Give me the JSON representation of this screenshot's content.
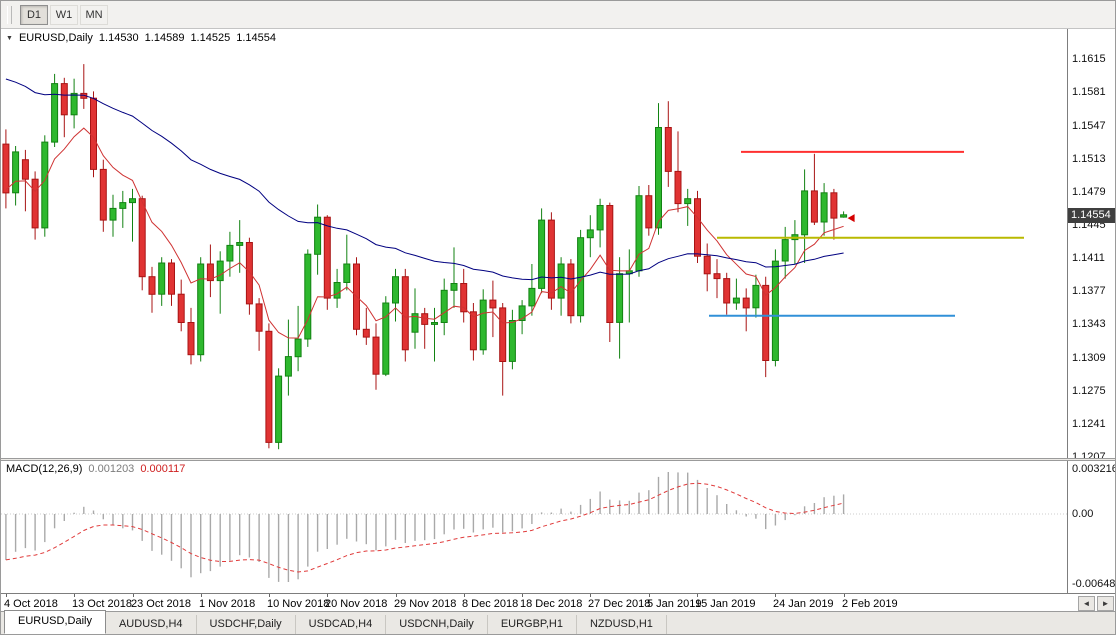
{
  "toolbar": {
    "buttons": [
      {
        "label": "D1",
        "active": true
      },
      {
        "label": "W1",
        "active": false
      },
      {
        "label": "MN",
        "active": false
      }
    ]
  },
  "chart_header": {
    "collapse_icon": "▼",
    "symbol_period": "EURUSD,Daily",
    "open": "1.14530",
    "high": "1.14589",
    "low": "1.14525",
    "close": "1.14554"
  },
  "chart_data": {
    "type": "candlestick",
    "symbol": "EURUSD",
    "period": "Daily",
    "price_max": 1.1646,
    "price_min": 1.1206,
    "visible_fraction": 0.795,
    "price_axis_ticks": [
      "1.1615",
      "1.1581",
      "1.1547",
      "1.1513",
      "1.1479",
      "1.1445",
      "1.1411",
      "1.1377",
      "1.1343",
      "1.1309",
      "1.1275",
      "1.1241",
      "1.1207"
    ],
    "last_price": "1.14554",
    "bull_color": "#2eb82e",
    "bull_border": "#128212",
    "bear_color": "#e03333",
    "bear_border": "#a81414",
    "ma_overlays": [
      {
        "name": "fast-ma",
        "period": 8,
        "seed": 1.1482,
        "color": "#cf3333"
      },
      {
        "name": "slow-ma",
        "period": 45,
        "seed": 1.16,
        "color": "#000080"
      }
    ],
    "hlines": [
      {
        "name": "resistance-hline",
        "price": 1.152,
        "x1": 0.694,
        "x2": 0.903,
        "color": "#ff3030",
        "width": 2
      },
      {
        "name": "pivot-hline",
        "price": 1.1432,
        "x1": 0.672,
        "x2": 0.96,
        "color": "#b9b900",
        "width": 2
      },
      {
        "name": "support-hline",
        "price": 1.1352,
        "x1": 0.664,
        "x2": 0.895,
        "color": "#3090d8",
        "width": 2
      }
    ],
    "marker": {
      "price": 1.1452,
      "color": "#d40000"
    },
    "candles": [
      [
        1.1528,
        1.1543,
        1.1462,
        1.1478
      ],
      [
        1.1478,
        1.1526,
        1.1465,
        1.152
      ],
      [
        1.1512,
        1.1522,
        1.1459,
        1.1492
      ],
      [
        1.1492,
        1.15,
        1.143,
        1.1442
      ],
      [
        1.1442,
        1.1537,
        1.1433,
        1.153
      ],
      [
        1.153,
        1.16,
        1.1525,
        1.159
      ],
      [
        1.159,
        1.1596,
        1.1535,
        1.1558
      ],
      [
        1.1558,
        1.1595,
        1.1544,
        1.158
      ],
      [
        1.158,
        1.161,
        1.1564,
        1.1575
      ],
      [
        1.1575,
        1.1582,
        1.1494,
        1.1502
      ],
      [
        1.1502,
        1.1512,
        1.1438,
        1.145
      ],
      [
        1.145,
        1.1476,
        1.1433,
        1.1462
      ],
      [
        1.1462,
        1.148,
        1.1442,
        1.1468
      ],
      [
        1.1468,
        1.1482,
        1.1428,
        1.1472
      ],
      [
        1.1472,
        1.1475,
        1.1378,
        1.1392
      ],
      [
        1.1392,
        1.1402,
        1.1355,
        1.1374
      ],
      [
        1.1374,
        1.1412,
        1.1362,
        1.1406
      ],
      [
        1.1406,
        1.141,
        1.1362,
        1.1374
      ],
      [
        1.1374,
        1.1389,
        1.1336,
        1.1345
      ],
      [
        1.1345,
        1.136,
        1.1302,
        1.1312
      ],
      [
        1.1312,
        1.1412,
        1.1305,
        1.1405
      ],
      [
        1.1405,
        1.1425,
        1.1371,
        1.1388
      ],
      [
        1.1388,
        1.1418,
        1.1354,
        1.1408
      ],
      [
        1.1408,
        1.1438,
        1.1392,
        1.1424
      ],
      [
        1.1424,
        1.145,
        1.1396,
        1.1427
      ],
      [
        1.1427,
        1.1432,
        1.1353,
        1.1364
      ],
      [
        1.1364,
        1.137,
        1.1316,
        1.1336
      ],
      [
        1.1336,
        1.1344,
        1.1216,
        1.1222
      ],
      [
        1.1222,
        1.1298,
        1.1215,
        1.129
      ],
      [
        1.129,
        1.1348,
        1.127,
        1.131
      ],
      [
        1.131,
        1.1362,
        1.1295,
        1.1328
      ],
      [
        1.1328,
        1.142,
        1.132,
        1.1415
      ],
      [
        1.1415,
        1.1466,
        1.1394,
        1.1453
      ],
      [
        1.1453,
        1.1455,
        1.1358,
        1.137
      ],
      [
        1.137,
        1.14,
        1.136,
        1.1386
      ],
      [
        1.1386,
        1.1435,
        1.1378,
        1.1405
      ],
      [
        1.1405,
        1.1412,
        1.1332,
        1.1338
      ],
      [
        1.1338,
        1.136,
        1.1322,
        1.133
      ],
      [
        1.133,
        1.1344,
        1.1276,
        1.1292
      ],
      [
        1.1292,
        1.1372,
        1.129,
        1.1365
      ],
      [
        1.1365,
        1.14,
        1.1346,
        1.1392
      ],
      [
        1.1392,
        1.14,
        1.1305,
        1.1317
      ],
      [
        1.1335,
        1.138,
        1.1318,
        1.1354
      ],
      [
        1.1354,
        1.136,
        1.1318,
        1.1343
      ],
      [
        1.1343,
        1.136,
        1.1305,
        1.1345
      ],
      [
        1.1345,
        1.139,
        1.1332,
        1.1378
      ],
      [
        1.1378,
        1.1422,
        1.136,
        1.1385
      ],
      [
        1.1385,
        1.14,
        1.1345,
        1.1356
      ],
      [
        1.1356,
        1.1365,
        1.1306,
        1.1317
      ],
      [
        1.1317,
        1.1379,
        1.1312,
        1.1368
      ],
      [
        1.1368,
        1.1388,
        1.133,
        1.136
      ],
      [
        1.136,
        1.1365,
        1.127,
        1.1305
      ],
      [
        1.1305,
        1.1358,
        1.1297,
        1.1347
      ],
      [
        1.1347,
        1.1368,
        1.1333,
        1.1362
      ],
      [
        1.1362,
        1.1405,
        1.1352,
        1.138
      ],
      [
        1.138,
        1.1462,
        1.1375,
        1.145
      ],
      [
        1.145,
        1.1458,
        1.1358,
        1.137
      ],
      [
        1.137,
        1.1412,
        1.1352,
        1.1405
      ],
      [
        1.1405,
        1.141,
        1.1344,
        1.1352
      ],
      [
        1.1352,
        1.144,
        1.1345,
        1.1432
      ],
      [
        1.1432,
        1.1455,
        1.1412,
        1.144
      ],
      [
        1.144,
        1.1472,
        1.1422,
        1.1465
      ],
      [
        1.1465,
        1.1468,
        1.1325,
        1.1345
      ],
      [
        1.1345,
        1.1412,
        1.1308,
        1.1395
      ],
      [
        1.1395,
        1.142,
        1.1345,
        1.1398
      ],
      [
        1.1398,
        1.1485,
        1.1392,
        1.1475
      ],
      [
        1.1475,
        1.1486,
        1.1434,
        1.1442
      ],
      [
        1.1442,
        1.157,
        1.1435,
        1.1545
      ],
      [
        1.1545,
        1.1572,
        1.1484,
        1.15
      ],
      [
        1.15,
        1.1541,
        1.1458,
        1.1467
      ],
      [
        1.1467,
        1.1482,
        1.1444,
        1.1472
      ],
      [
        1.1472,
        1.148,
        1.1406,
        1.1413
      ],
      [
        1.1413,
        1.1426,
        1.1377,
        1.1395
      ],
      [
        1.1395,
        1.141,
        1.137,
        1.139
      ],
      [
        1.139,
        1.1396,
        1.1353,
        1.1365
      ],
      [
        1.1365,
        1.139,
        1.1358,
        1.137
      ],
      [
        1.137,
        1.138,
        1.1336,
        1.136
      ],
      [
        1.136,
        1.1394,
        1.135,
        1.1383
      ],
      [
        1.1383,
        1.1392,
        1.1289,
        1.1306
      ],
      [
        1.1306,
        1.142,
        1.13,
        1.1408
      ],
      [
        1.1408,
        1.1443,
        1.139,
        1.143
      ],
      [
        1.143,
        1.145,
        1.1405,
        1.1435
      ],
      [
        1.1435,
        1.1502,
        1.1406,
        1.148
      ],
      [
        1.148,
        1.1518,
        1.1445,
        1.1448
      ],
      [
        1.1448,
        1.1488,
        1.1434,
        1.1478
      ],
      [
        1.1478,
        1.1482,
        1.143,
        1.1452
      ],
      [
        1.1453,
        1.14589,
        1.14525,
        1.14554
      ]
    ]
  },
  "macd_header": {
    "name": "MACD(12,26,9)",
    "value": "0.001203",
    "signal_value": "0.000117"
  },
  "macd_data": {
    "type": "macd",
    "fast": 12,
    "slow": 26,
    "signal": 9,
    "slow_seed_offset": 0.0035,
    "axis_ticks": [
      "0.003216",
      "0.00",
      "-0.006485"
    ],
    "histogram_color": "#a9a9a9",
    "signal_color": "#e03b3b",
    "zero_line_color": "#cccccc"
  },
  "date_axis": {
    "labels": [
      {
        "text": "4 Oct 2018",
        "index": 0
      },
      {
        "text": "13 Oct 2018",
        "index": 7
      },
      {
        "text": "23 Oct 2018",
        "index": 13
      },
      {
        "text": "1 Nov 2018",
        "index": 20
      },
      {
        "text": "10 Nov 2018",
        "index": 27
      },
      {
        "text": "20 Nov 2018",
        "index": 33
      },
      {
        "text": "29 Nov 2018",
        "index": 40
      },
      {
        "text": "8 Dec 2018",
        "index": 47
      },
      {
        "text": "18 Dec 2018",
        "index": 53
      },
      {
        "text": "27 Dec 2018",
        "index": 60
      },
      {
        "text": "5 Jan 2019",
        "index": 66
      },
      {
        "text": "15 Jan 2019",
        "index": 71
      },
      {
        "text": "24 Jan 2019",
        "index": 79
      },
      {
        "text": "2 Feb 2019",
        "index": 86
      }
    ],
    "scroll_left_icon": "◄",
    "scroll_right_icon": "►"
  },
  "tabs": [
    {
      "label": "EURUSD,Daily",
      "active": true
    },
    {
      "label": "AUDUSD,H4",
      "active": false
    },
    {
      "label": "USDCHF,Daily",
      "active": false
    },
    {
      "label": "USDCAD,H4",
      "active": false
    },
    {
      "label": "USDCNH,Daily",
      "active": false
    },
    {
      "label": "EURGBP,H1",
      "active": false
    },
    {
      "label": "NZDUSD,H1",
      "active": false
    }
  ]
}
